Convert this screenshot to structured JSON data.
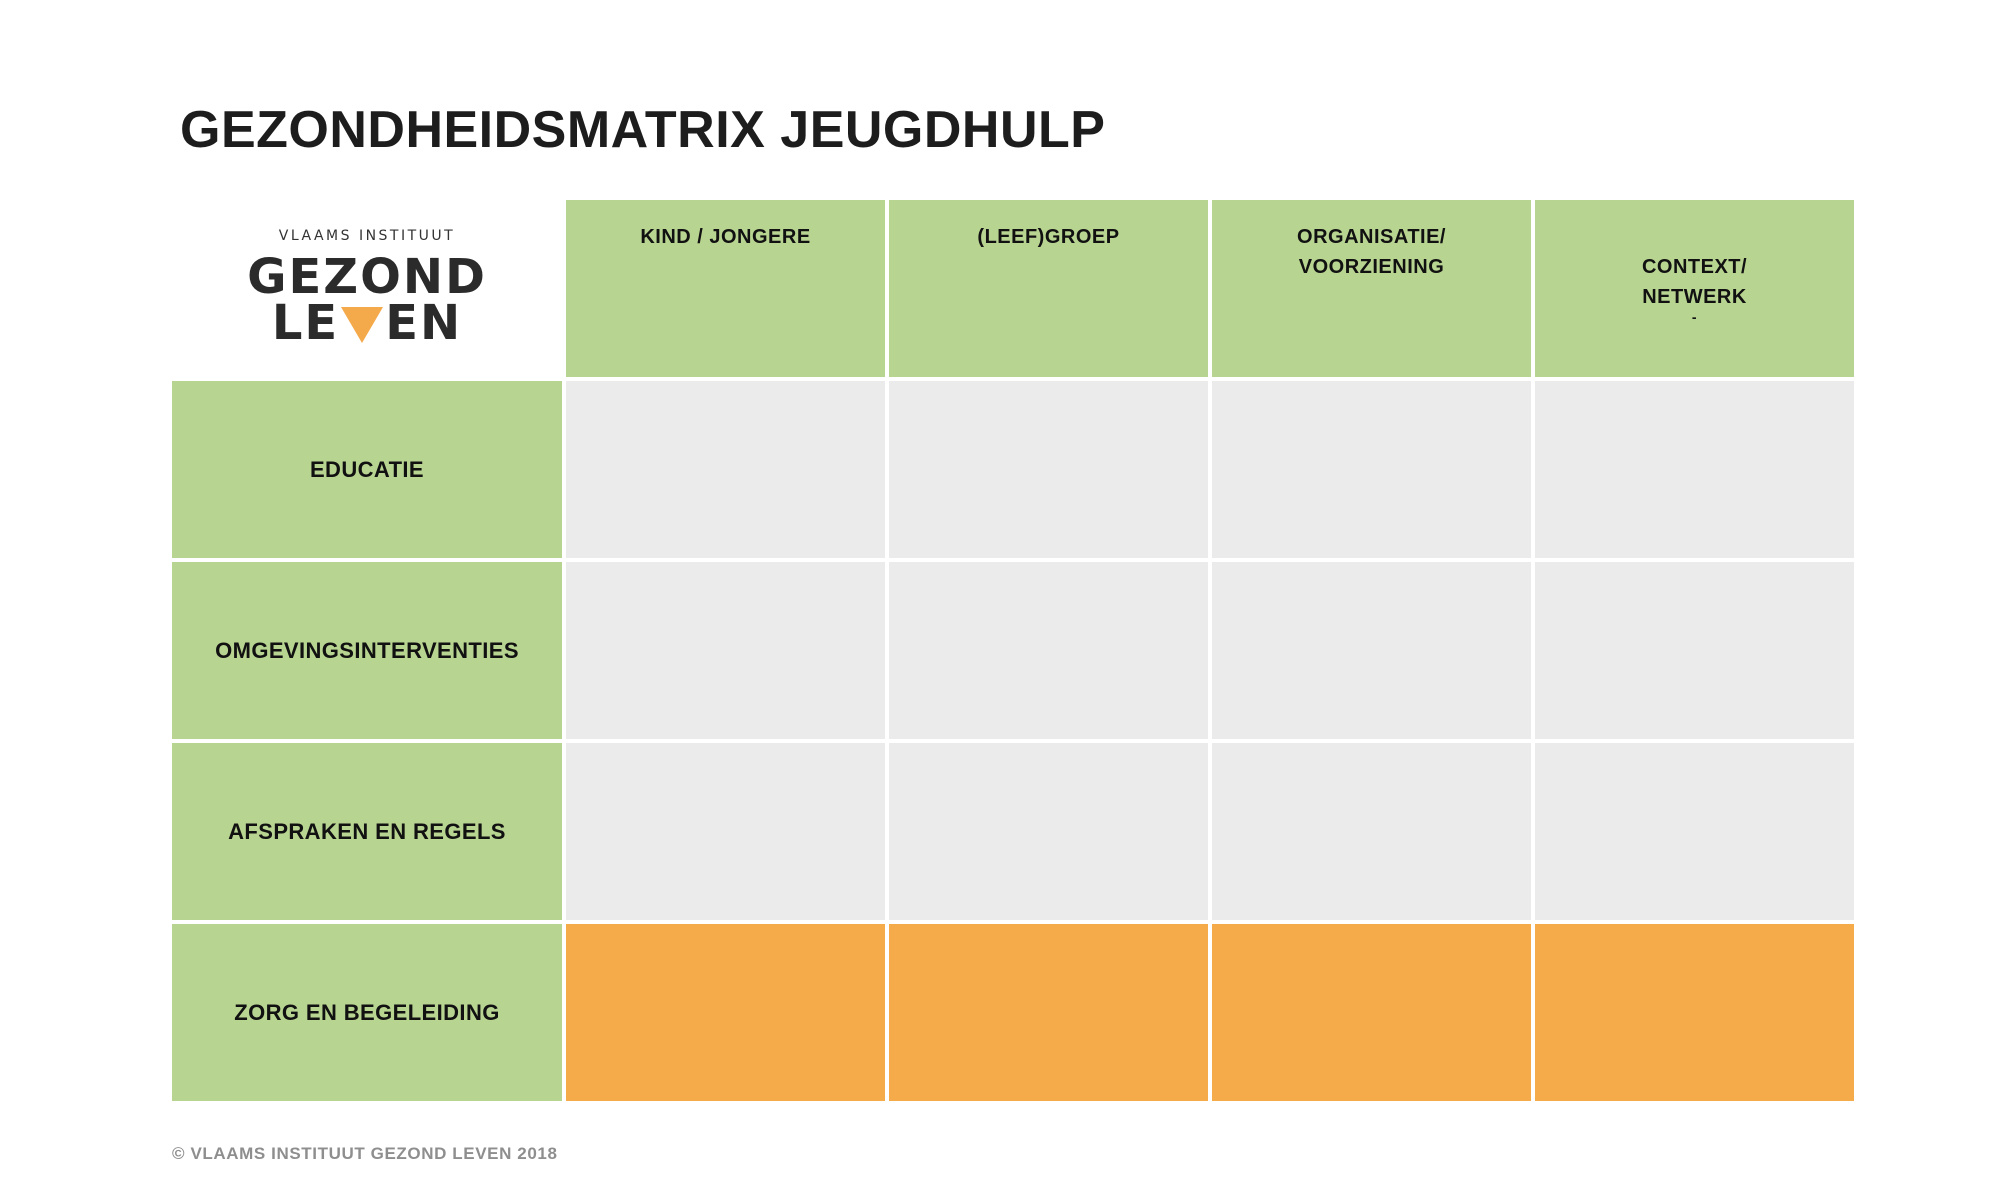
{
  "title": "GEZONDHEIDSMATRIX JEUGDHULP",
  "logo": {
    "subtitle": "VLAAMS INSTITUUT",
    "line1": "GEZOND",
    "line2_left": "LE",
    "line2_right": "EN",
    "accent_color": "#f4a94a"
  },
  "columns": [
    {
      "label": "KIND / JONGERE"
    },
    {
      "label": "(LEEF)GROEP"
    },
    {
      "label": "ORGANISATIE/\nVOORZIENING"
    },
    {
      "label": "CONTEXT/\nNETWERK",
      "mark": "-"
    }
  ],
  "rows": [
    {
      "label": "EDUCATIE",
      "fill": "gray"
    },
    {
      "label": "OMGEVINGSINTERVENTIES",
      "fill": "gray"
    },
    {
      "label": "AFSPRAKEN EN REGELS",
      "fill": "gray"
    },
    {
      "label": "ZORG EN BEGELEIDING",
      "fill": "orange"
    }
  ],
  "colors": {
    "header_green": "#b8d491",
    "cell_gray": "#ebebeb",
    "cell_orange": "#f5ab4a"
  },
  "footer": "© VLAAMS INSTITUUT GEZOND LEVEN 2018"
}
